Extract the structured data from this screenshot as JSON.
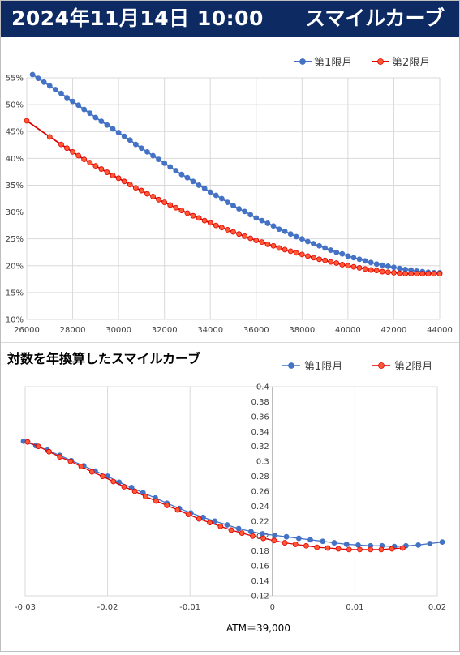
{
  "header": {
    "date": "2024年11月14日 10:00",
    "name": "スマイルカーブ"
  },
  "colors": {
    "header_bg": "#0d2a63",
    "series1": "#4472c4",
    "series2_fill": "#ff5a36",
    "series2_line": "#e00000",
    "grid": "#d9d9d9"
  },
  "chart_data": [
    {
      "type": "line",
      "title": "",
      "xlim": [
        26000,
        44000
      ],
      "ylim": [
        0.1,
        0.55
      ],
      "x_ticks": [
        "26000",
        "28000",
        "30000",
        "32000",
        "34000",
        "36000",
        "38000",
        "40000",
        "42000",
        "44000"
      ],
      "y_ticks": [
        "10%",
        "15%",
        "20%",
        "25%",
        "30%",
        "35%",
        "40%",
        "45%",
        "50%",
        "55%"
      ],
      "grid": true,
      "legend_position": "top-right",
      "series": [
        {
          "name": "第1限月",
          "x": [
            26250,
            26500,
            26750,
            27000,
            27250,
            27500,
            27750,
            28000,
            28250,
            28500,
            28750,
            29000,
            29250,
            29500,
            29750,
            30000,
            30250,
            30500,
            30750,
            31000,
            31250,
            31500,
            31750,
            32000,
            32250,
            32500,
            32750,
            33000,
            33250,
            33500,
            33750,
            34000,
            34250,
            34500,
            34750,
            35000,
            35250,
            35500,
            35750,
            36000,
            36250,
            36500,
            36750,
            37000,
            37250,
            37500,
            37750,
            38000,
            38250,
            38500,
            38750,
            39000,
            39250,
            39500,
            39750,
            40000,
            40250,
            40500,
            40750,
            41000,
            41250,
            41500,
            41750,
            42000,
            42250,
            42500,
            42750,
            43000,
            43250,
            43500,
            43750,
            44000
          ],
          "values": [
            0.556,
            0.549,
            0.542,
            0.535,
            0.528,
            0.521,
            0.513,
            0.506,
            0.499,
            0.491,
            0.484,
            0.476,
            0.469,
            0.462,
            0.455,
            0.448,
            0.441,
            0.434,
            0.426,
            0.419,
            0.412,
            0.405,
            0.398,
            0.391,
            0.384,
            0.377,
            0.37,
            0.364,
            0.357,
            0.35,
            0.344,
            0.337,
            0.331,
            0.325,
            0.318,
            0.312,
            0.306,
            0.301,
            0.295,
            0.289,
            0.284,
            0.279,
            0.274,
            0.268,
            0.264,
            0.259,
            0.254,
            0.25,
            0.245,
            0.241,
            0.237,
            0.233,
            0.229,
            0.225,
            0.222,
            0.218,
            0.215,
            0.212,
            0.209,
            0.206,
            0.203,
            0.201,
            0.199,
            0.197,
            0.195,
            0.193,
            0.192,
            0.19,
            0.189,
            0.188,
            0.187,
            0.187
          ]
        },
        {
          "name": "第2限月",
          "x": [
            26000,
            27000,
            27500,
            27750,
            28000,
            28250,
            28500,
            28750,
            29000,
            29250,
            29500,
            29750,
            30000,
            30250,
            30500,
            30750,
            31000,
            31250,
            31500,
            31750,
            32000,
            32250,
            32500,
            32750,
            33000,
            33250,
            33500,
            33750,
            34000,
            34250,
            34500,
            34750,
            35000,
            35250,
            35500,
            35750,
            36000,
            36250,
            36500,
            36750,
            37000,
            37250,
            37500,
            37750,
            38000,
            38250,
            38500,
            38750,
            39000,
            39250,
            39500,
            39750,
            40000,
            40250,
            40500,
            40750,
            41000,
            41250,
            41500,
            41750,
            42000,
            42250,
            42500,
            42750,
            43000,
            43250,
            43500,
            43750,
            44000
          ],
          "values": [
            0.47,
            0.44,
            0.426,
            0.419,
            0.412,
            0.405,
            0.398,
            0.392,
            0.386,
            0.38,
            0.374,
            0.368,
            0.363,
            0.357,
            0.351,
            0.345,
            0.34,
            0.334,
            0.329,
            0.323,
            0.318,
            0.313,
            0.308,
            0.303,
            0.298,
            0.293,
            0.289,
            0.284,
            0.28,
            0.275,
            0.271,
            0.267,
            0.263,
            0.259,
            0.255,
            0.251,
            0.247,
            0.244,
            0.24,
            0.237,
            0.233,
            0.23,
            0.227,
            0.224,
            0.221,
            0.218,
            0.215,
            0.212,
            0.21,
            0.207,
            0.205,
            0.202,
            0.2,
            0.198,
            0.196,
            0.194,
            0.192,
            0.191,
            0.189,
            0.188,
            0.187,
            0.186,
            0.185,
            0.185,
            0.185,
            0.185,
            0.185,
            0.185,
            0.185
          ]
        }
      ]
    },
    {
      "type": "line",
      "title": "対数を年換算したスマイルカーブ",
      "xlabel": "ATM＝39,000",
      "xlim": [
        -0.03,
        0.02
      ],
      "ylim": [
        0.12,
        0.4
      ],
      "x_ticks": [
        "-0.03",
        "-0.02",
        "-0.01",
        "0",
        "0.01",
        "0.02"
      ],
      "y_ticks": [
        "0.12",
        "0.14",
        "0.16",
        "0.18",
        "0.2",
        "0.22",
        "0.24",
        "0.26",
        "0.28",
        "0.3",
        "0.32",
        "0.34",
        "0.36",
        "0.38",
        "0.4"
      ],
      "grid": true,
      "legend_position": "top-right",
      "series": [
        {
          "name": "第1限月",
          "x": [
            -0.0302,
            -0.0287,
            -0.0273,
            -0.0258,
            -0.0244,
            -0.0229,
            -0.0215,
            -0.02,
            -0.0186,
            -0.0171,
            -0.0157,
            -0.0142,
            -0.0128,
            -0.0113,
            -0.0099,
            -0.0084,
            -0.007,
            -0.0055,
            -0.0041,
            -0.0026,
            -0.0012,
            0.0003,
            0.0017,
            0.0032,
            0.0046,
            0.0061,
            0.0075,
            0.009,
            0.0104,
            0.0119,
            0.0133,
            0.0148,
            0.0162,
            0.0177,
            0.0191,
            0.0206
          ],
          "values": [
            0.327,
            0.321,
            0.315,
            0.308,
            0.301,
            0.294,
            0.287,
            0.28,
            0.272,
            0.265,
            0.258,
            0.251,
            0.244,
            0.237,
            0.231,
            0.225,
            0.22,
            0.215,
            0.21,
            0.206,
            0.203,
            0.201,
            0.199,
            0.197,
            0.195,
            0.193,
            0.191,
            0.189,
            0.188,
            0.187,
            0.187,
            0.186,
            0.187,
            0.188,
            0.19,
            0.192
          ]
        },
        {
          "name": "第2限月",
          "x": [
            -0.0297,
            -0.0284,
            -0.0271,
            -0.0258,
            -0.0245,
            -0.0232,
            -0.0219,
            -0.0206,
            -0.0193,
            -0.018,
            -0.0167,
            -0.0154,
            -0.0141,
            -0.0128,
            -0.0115,
            -0.0102,
            -0.0089,
            -0.0076,
            -0.0063,
            -0.005,
            -0.0037,
            -0.0024,
            -0.0011,
            0.0002,
            0.0015,
            0.0028,
            0.0041,
            0.0054,
            0.0067,
            0.008,
            0.0093,
            0.0106,
            0.0119,
            0.0132,
            0.0145,
            0.0158
          ],
          "values": [
            0.326,
            0.32,
            0.313,
            0.306,
            0.3,
            0.293,
            0.286,
            0.28,
            0.273,
            0.266,
            0.26,
            0.253,
            0.247,
            0.241,
            0.235,
            0.229,
            0.223,
            0.218,
            0.213,
            0.208,
            0.204,
            0.2,
            0.197,
            0.194,
            0.191,
            0.189,
            0.187,
            0.185,
            0.184,
            0.183,
            0.182,
            0.182,
            0.182,
            0.182,
            0.183,
            0.184
          ]
        }
      ]
    }
  ]
}
